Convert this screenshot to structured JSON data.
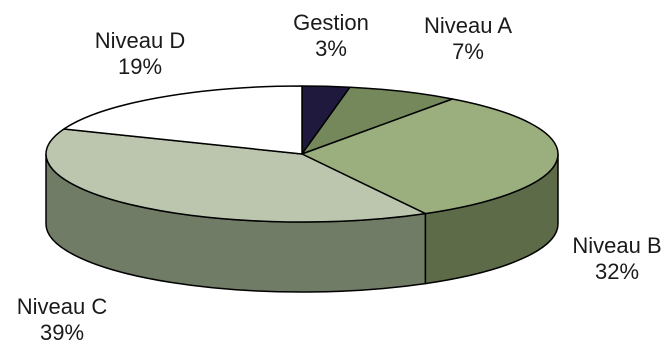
{
  "chart_data": {
    "type": "pie",
    "title": "",
    "style": "3d",
    "legend": "none",
    "slices": [
      {
        "label": "Gestion",
        "value": 3,
        "display": "3%",
        "top_color": "#1f1a3d",
        "side_color": "#0f0c22"
      },
      {
        "label": "Niveau A",
        "value": 7,
        "display": "7%",
        "top_color": "#75885c",
        "side_color": "#4d5c3a"
      },
      {
        "label": "Niveau B",
        "value": 32,
        "display": "32%",
        "top_color": "#9bae7e",
        "side_color": "#5d6b48"
      },
      {
        "label": "Niveau C",
        "value": 39,
        "display": "39%",
        "top_color": "#bcc6ae",
        "side_color": "#717c66"
      },
      {
        "label": "Niveau D",
        "value": 19,
        "display": "19%",
        "top_color": "#ffffff",
        "side_color": "#d9d9d9"
      }
    ]
  }
}
